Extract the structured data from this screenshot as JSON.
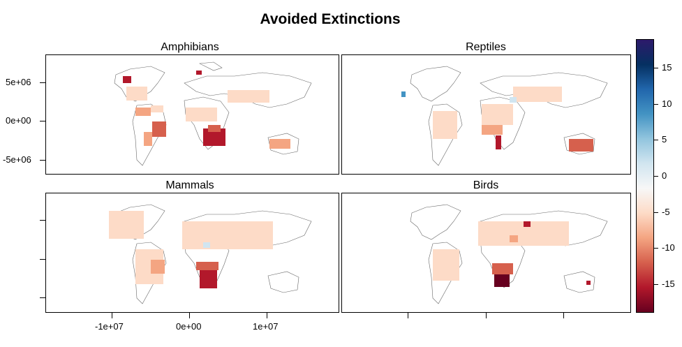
{
  "title": "Avoided Extinctions",
  "panels": [
    {
      "name": "Amphibians"
    },
    {
      "name": "Reptiles"
    },
    {
      "name": "Mammals"
    },
    {
      "name": "Birds"
    }
  ],
  "axes": {
    "y_ticks": [
      "5e+06",
      "0e+00",
      "-5e+06"
    ],
    "x_ticks": [
      "-1e+07",
      "0e+00",
      "1e+07"
    ]
  },
  "colorbar": {
    "ticks": [
      "15",
      "10",
      "5",
      "0",
      "-5",
      "-10",
      "-15"
    ],
    "colors": [
      "#67001f",
      "#b2182b",
      "#d6604d",
      "#f4a582",
      "#fddbc7",
      "#f7f7f7",
      "#d1e5f0",
      "#92c5de",
      "#4393c3",
      "#2166ac",
      "#053061",
      "#2d1a6b"
    ]
  },
  "chart_data": {
    "type": "heatmap",
    "title": "Avoided Extinctions",
    "panels": [
      "Amphibians",
      "Reptiles",
      "Mammals",
      "Birds"
    ],
    "colorbar_range": [
      -19,
      19
    ],
    "colorbar_ticks": [
      -15,
      -10,
      -5,
      0,
      5,
      10,
      15
    ],
    "x_ticks": [
      -10000000,
      0,
      10000000
    ],
    "y_ticks": [
      5000000,
      0,
      -5000000
    ]
  }
}
